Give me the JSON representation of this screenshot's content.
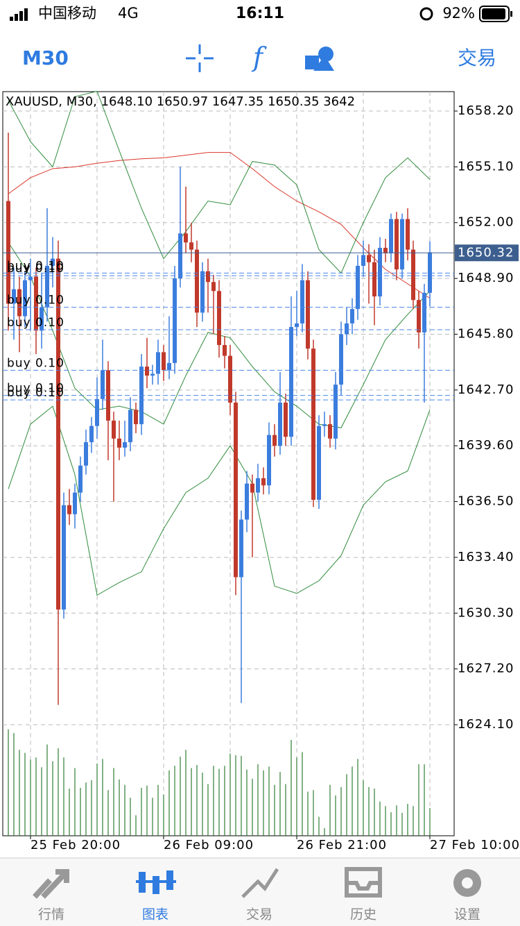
{
  "status_bar": {
    "carrier": "中国移动",
    "network": "4G",
    "time": "16:11",
    "battery": "92%"
  },
  "toolbar": {
    "timeframe": "M30",
    "trade": "交易"
  },
  "chart_data": {
    "type": "candlestick",
    "info": "XAUUSD, M30, 1648.10 1650.97 1647.35 1650.35 3642",
    "categories": [
      null,
      null,
      null,
      null,
      "25 Feb 20:00",
      null,
      null,
      null,
      null,
      null,
      null,
      null,
      null,
      null,
      null,
      null,
      null,
      null,
      null,
      null,
      null,
      null,
      null,
      null,
      null,
      null,
      null,
      null,
      "26 Feb 09:00",
      null,
      null,
      null,
      null,
      null,
      null,
      null,
      null,
      null,
      null,
      null,
      null,
      null,
      null,
      null,
      null,
      null,
      null,
      null,
      null,
      null,
      null,
      null,
      "26 Feb 21:00",
      null,
      null,
      null,
      null,
      null,
      null,
      null,
      null,
      null,
      null,
      null,
      null,
      null,
      null,
      null,
      null,
      null,
      null,
      null,
      null,
      null,
      null,
      null,
      "27 Feb 10:00"
    ],
    "open": [
      1653.2,
      1647.5,
      1648.3,
      1646.8,
      1648.8,
      1649.0,
      1646.0,
      1647.3,
      1649.6,
      1650.0,
      1630.5,
      1636.3,
      1635.8,
      1637.0,
      1638.5,
      1639.8,
      1640.7,
      1642.2,
      1643.8,
      1641.0,
      1640.0,
      1639.5,
      1639.8,
      1641.6,
      1640.8,
      1644.0,
      1643.5,
      1643.6,
      1644.8,
      1643.8,
      1644.2,
      1648.9,
      1651.4,
      1650.9,
      1650.5,
      1647.0,
      1649.3,
      1648.7,
      1648.2,
      1645.2,
      1644.6,
      1642.0,
      1632.3,
      1635.5,
      1637.5,
      1637.0,
      1637.8,
      1637.4,
      1640.2,
      1639.6,
      1642.0,
      1640.1,
      1646.2,
      1646.4,
      1648.8,
      1645.0,
      1636.6,
      1640.7,
      1640.8,
      1640.0,
      1643.0,
      1645.8,
      1646.4,
      1647.2,
      1649.6,
      1650.2,
      1649.8,
      1647.9,
      1650.6,
      1650.3,
      1652.2,
      1649.4,
      1652.2,
      1650.5,
      1647.7,
      1645.9,
      1648.1
    ],
    "high": [
      1657.0,
      1649.5,
      1649.0,
      1649.3,
      1650.0,
      1649.5,
      1649.2,
      1652.8,
      1651.2,
      1651.0,
      1637.0,
      1637.2,
      1637.5,
      1639.0,
      1640.5,
      1641.2,
      1643.4,
      1645.5,
      1644.3,
      1641.5,
      1641.0,
      1641.0,
      1642.3,
      1642.0,
      1644.7,
      1645.6,
      1644.1,
      1645.5,
      1645.2,
      1646.8,
      1649.6,
      1655.1,
      1654.0,
      1652.0,
      1651.0,
      1649.8,
      1650.0,
      1649.1,
      1648.8,
      1645.7,
      1645.2,
      1642.6,
      1636.0,
      1638.2,
      1638.0,
      1638.6,
      1638.4,
      1640.9,
      1640.8,
      1643.7,
      1642.5,
      1647.9,
      1648.2,
      1649.7,
      1649.3,
      1645.5,
      1641.3,
      1641.5,
      1641.3,
      1643.7,
      1646.5,
      1647.3,
      1647.8,
      1650.2,
      1651.0,
      1650.8,
      1650.5,
      1651.2,
      1651.1,
      1652.5,
      1652.6,
      1652.5,
      1652.8,
      1651.0,
      1648.2,
      1648.6,
      1650.97
    ],
    "low": [
      1646.0,
      1645.5,
      1644.8,
      1646.2,
      1646.0,
      1644.7,
      1645.0,
      1646.5,
      1648.4,
      1625.2,
      1630.0,
      1635.2,
      1635.0,
      1636.5,
      1638.0,
      1639.2,
      1640.0,
      1641.6,
      1638.8,
      1636.5,
      1638.8,
      1639.0,
      1639.3,
      1640.3,
      1640.2,
      1642.8,
      1643.0,
      1643.0,
      1643.2,
      1643.3,
      1643.6,
      1648.4,
      1650.3,
      1649.8,
      1646.2,
      1646.5,
      1647.0,
      1645.8,
      1644.5,
      1643.9,
      1641.3,
      1631.3,
      1625.3,
      1634.8,
      1633.4,
      1636.5,
      1636.9,
      1636.9,
      1639.0,
      1639.1,
      1639.6,
      1639.6,
      1645.7,
      1645.9,
      1644.4,
      1636.2,
      1636.1,
      1640.1,
      1639.5,
      1639.4,
      1642.4,
      1645.2,
      1645.8,
      1646.6,
      1649.0,
      1647.5,
      1646.3,
      1647.4,
      1649.8,
      1649.8,
      1648.8,
      1648.9,
      1649.9,
      1647.2,
      1645.0,
      1642.0,
      1647.35
    ],
    "close": [
      1647.5,
      1648.3,
      1646.8,
      1648.8,
      1649.0,
      1646.0,
      1647.3,
      1649.6,
      1650.0,
      1630.5,
      1636.3,
      1635.8,
      1637.0,
      1638.5,
      1639.8,
      1640.7,
      1642.2,
      1643.8,
      1641.0,
      1640.0,
      1639.5,
      1639.8,
      1641.6,
      1640.8,
      1644.0,
      1643.5,
      1643.6,
      1644.8,
      1643.8,
      1644.2,
      1648.9,
      1651.4,
      1650.9,
      1650.5,
      1647.0,
      1649.3,
      1648.7,
      1648.2,
      1645.2,
      1644.6,
      1642.0,
      1632.3,
      1635.5,
      1637.5,
      1637.0,
      1637.8,
      1637.4,
      1640.2,
      1639.6,
      1642.0,
      1640.1,
      1646.2,
      1646.4,
      1648.8,
      1645.0,
      1636.6,
      1640.7,
      1640.8,
      1640.0,
      1643.0,
      1645.8,
      1646.4,
      1647.2,
      1649.6,
      1650.2,
      1649.8,
      1647.9,
      1650.6,
      1650.3,
      1652.2,
      1649.4,
      1652.2,
      1650.5,
      1647.7,
      1645.9,
      1648.1,
      1650.35
    ],
    "volume": [
      14000,
      13500,
      11300,
      10900,
      10000,
      10300,
      9000,
      12000,
      9800,
      11500,
      10300,
      6200,
      8900,
      6300,
      7000,
      7300,
      9500,
      10100,
      6000,
      8900,
      7400,
      6700,
      5000,
      2700,
      6300,
      6600,
      5000,
      6700,
      5400,
      8600,
      9200,
      10400,
      11300,
      8900,
      9300,
      8300,
      6800,
      9200,
      8800,
      9200,
      10800,
      10600,
      10500,
      8700,
      7500,
      9400,
      8600,
      9100,
      6700,
      8400,
      6800,
      12600,
      10300,
      11000,
      5800,
      6000,
      2500,
      1000,
      6700,
      5300,
      6400,
      8100,
      9100,
      10100,
      7300,
      6400,
      6200,
      4500,
      3900,
      3100,
      4000,
      3000,
      4200,
      3900,
      9400,
      9400,
      3642
    ],
    "volume_lim": [
      0,
      14600
    ],
    "up_color": "#3b7ddd",
    "down_color": "#c0392b",
    "volume_color": "#2e7d32",
    "lines": [
      {
        "color": "#d9362b",
        "x": [
          0,
          4,
          8,
          12,
          16,
          20,
          24,
          28,
          32,
          36,
          40,
          44,
          48,
          52,
          56,
          60,
          64,
          68,
          72,
          76
        ],
        "values": [
          1653.6,
          1654.5,
          1655.0,
          1655.1,
          1655.3,
          1655.45,
          1655.55,
          1655.6,
          1655.75,
          1655.9,
          1655.9,
          1655.0,
          1654.0,
          1653.2,
          1652.6,
          1651.9,
          1650.6,
          1649.4,
          1648.6,
          1647.8
        ]
      },
      {
        "color": "#2e8b3a",
        "x": [
          0,
          4,
          8,
          12,
          16,
          20,
          24,
          28,
          32,
          36,
          40,
          44,
          48,
          52,
          56,
          60,
          64,
          68,
          72,
          76
        ],
        "values": [
          1658.8,
          1656.5,
          1655.1,
          1659.0,
          1659.3,
          1656.0,
          1652.8,
          1650.0,
          1651.5,
          1653.2,
          1653.0,
          1655.4,
          1655.2,
          1654.1,
          1650.5,
          1649.2,
          1652.0,
          1654.5,
          1655.6,
          1654.4
        ]
      },
      {
        "color": "#2e8b3a",
        "x": [
          0,
          4,
          8,
          12,
          16,
          20,
          24,
          28,
          32,
          36,
          40,
          44,
          48,
          52,
          56,
          60,
          64,
          68,
          72,
          76
        ],
        "values": [
          1650.9,
          1649.0,
          1646.0,
          1642.8,
          1641.6,
          1641.8,
          1641.5,
          1640.8,
          1643.5,
          1645.9,
          1645.6,
          1644.0,
          1642.6,
          1641.8,
          1640.8,
          1640.6,
          1643.0,
          1645.5,
          1646.9,
          1648.2
        ]
      },
      {
        "color": "#2e8b3a",
        "x": [
          0,
          4,
          8,
          12,
          16,
          20,
          24,
          28,
          32,
          36,
          40,
          44,
          48,
          52,
          56,
          60,
          64,
          68,
          72,
          76
        ],
        "values": [
          1637.2,
          1640.8,
          1641.8,
          1638.0,
          1631.3,
          1632.0,
          1632.6,
          1635.0,
          1637.0,
          1637.8,
          1639.6,
          1637.5,
          1631.8,
          1631.4,
          1632.1,
          1633.5,
          1636.3,
          1637.6,
          1638.2,
          1641.6
        ]
      }
    ],
    "orders": [
      {
        "label": "buy 0.10",
        "price": 1649.2
      },
      {
        "label": "buy 0.10",
        "price": 1649.05
      },
      {
        "label": "buy 0.10",
        "price": 1647.3
      },
      {
        "label": "buy 0.10",
        "price": 1646.05
      },
      {
        "label": "buy 0.10",
        "price": 1643.8
      },
      {
        "label": "buy 0.10",
        "price": 1642.4
      },
      {
        "label": "buy 0.10",
        "price": 1642.15
      }
    ],
    "current_price": 1650.32,
    "ylim": [
      1617.93,
      1659.28
    ],
    "yticks": [
      {
        "value": 1658.2,
        "label": "1658.20"
      },
      {
        "value": 1655.1,
        "label": "1655.10"
      },
      {
        "value": 1652.0,
        "label": "1652.00"
      },
      {
        "value": 1648.9,
        "label": "1648.90"
      },
      {
        "value": 1645.8,
        "label": "1645.80"
      },
      {
        "value": 1642.7,
        "label": "1642.70"
      },
      {
        "value": 1639.6,
        "label": "1639.60"
      },
      {
        "value": 1636.5,
        "label": "1636.50"
      },
      {
        "value": 1633.4,
        "label": "1633.40"
      },
      {
        "value": 1630.3,
        "label": "1630.30"
      },
      {
        "value": 1627.2,
        "label": "1627.20"
      },
      {
        "value": 1624.1,
        "label": "1624.10"
      }
    ],
    "grid": true
  },
  "tab_bar": {
    "items": [
      "行情",
      "图表",
      "交易",
      "历史",
      "设置"
    ],
    "active": 1
  }
}
